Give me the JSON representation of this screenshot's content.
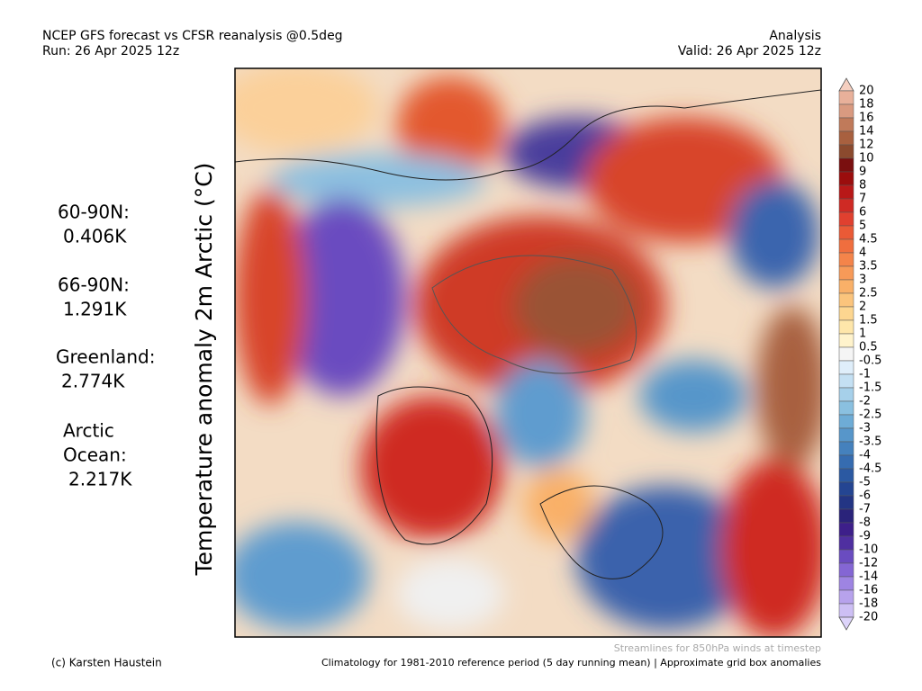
{
  "header": {
    "title": "NCEP GFS forecast vs CFSR reanalysis @0.5deg",
    "run": "Run: 26 Apr 2025 12z",
    "mode": "Analysis",
    "valid": "Valid: 26 Apr 2025 12z"
  },
  "map_title": "Temperature anomaly 2m Arctic (°C)",
  "stats": [
    {
      "label": "60-90N:",
      "value": "0.406K"
    },
    {
      "label": "66-90N:",
      "value": "1.291K"
    },
    {
      "label": "Greenland:",
      "value": "2.774K"
    },
    {
      "label": "Arctic",
      "label2": "Ocean:",
      "value": "2.217K"
    }
  ],
  "colorbar": {
    "levels": [
      20,
      18,
      16,
      14,
      12,
      10,
      9,
      8,
      7,
      6,
      5,
      4.5,
      4,
      3.5,
      3,
      2.5,
      2,
      1.5,
      1,
      0.5,
      -0.5,
      -1,
      -1.5,
      -2,
      -2.5,
      -3,
      -3.5,
      -4,
      -4.5,
      -5,
      -6,
      -7,
      -8,
      -9,
      -10,
      -12,
      -14,
      -16,
      -18,
      -20
    ],
    "colors": [
      "#f5cfc0",
      "#e8b09a",
      "#d99a80",
      "#c07a5a",
      "#a8603f",
      "#8b4a2e",
      "#7a0f0f",
      "#9b0d0d",
      "#b81818",
      "#cf2a24",
      "#e0402f",
      "#ea5a36",
      "#f06e3e",
      "#f4844a",
      "#f79a58",
      "#f9b068",
      "#fbc47c",
      "#fdd690",
      "#fee6aa",
      "#fff3cc",
      "#f5f5f5",
      "#dfeefa",
      "#c4e0f3",
      "#a6d0ea",
      "#8ac0e0",
      "#6eacd6",
      "#5796ca",
      "#4581bd",
      "#366cb0",
      "#2b59a2",
      "#244592",
      "#233584",
      "#2a237a",
      "#3d1f8a",
      "#4f2fa0",
      "#6a4cc0",
      "#8466d4",
      "#9e84e2",
      "#b7a2ec",
      "#cdbff4",
      "#ddd4fa"
    ]
  },
  "footer": {
    "streamlines": "Streamlines for 850hPa winds at timestep",
    "credit": "(c) Karsten Haustein",
    "note": "Climatology for 1981-2010 reference period (5 day running mean) | Approximate grid box anomalies"
  }
}
